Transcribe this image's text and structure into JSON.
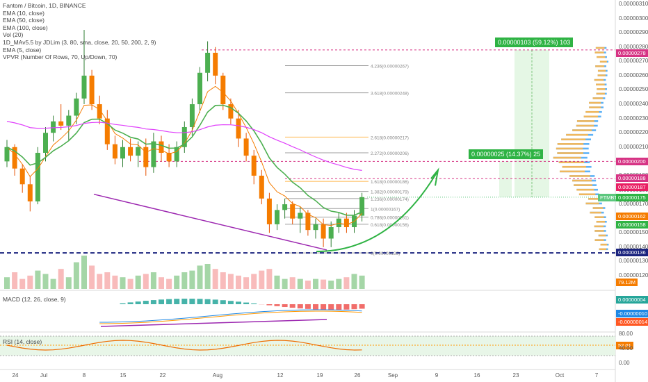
{
  "chart_data": {
    "type": "candlestick",
    "symbol": "Fantom / Bitcoin, 1D, BINANCE",
    "legend": [
      "Fantom / Bitcoin, 1D, BINANCE",
      "EMA (10, close)",
      "EMA (50, close)",
      "EMA (100, close)",
      "Vol (20)",
      "1D_MAv5.5 by JDLim (3, 80, sma, close, 20, 50, 200, 2, 9)",
      "EMA (5, close)",
      "VPVR (Number Of Rows, 70, Up/Down, 70)"
    ],
    "price_axis_ticks": [
      "0.00000310",
      "0.00000300",
      "0.00000290",
      "0.00000280",
      "0.00000270",
      "0.00000260",
      "0.00000250",
      "0.00000240",
      "0.00000230",
      "0.00000220",
      "0.00000210",
      "0.00000200",
      "0.00000190",
      "0.00000180",
      "0.00000170",
      "0.00000160",
      "0.00000150",
      "0.00000140",
      "0.00000130",
      "0.00000120"
    ],
    "x_axis_labels": [
      "24",
      "Jul",
      "8",
      "15",
      "22",
      "Aug",
      "12",
      "19",
      "26",
      "Sep",
      "9",
      "16",
      "23",
      "Oct",
      "7"
    ],
    "price_labels": [
      {
        "text": "0.00000278",
        "color": "#d63384"
      },
      {
        "text": "0.00000200",
        "color": "#d63384"
      },
      {
        "text": "0.00000188",
        "color": "#d63384"
      },
      {
        "text": "0.00000187",
        "color": "#e91e63"
      },
      {
        "text": "FTMBTC",
        "color": "#5cc77e"
      },
      {
        "text": "0.00000175",
        "color": "#2fb344"
      },
      {
        "text": "0.00000162",
        "color": "#f57c00"
      },
      {
        "text": "0.00000158",
        "color": "#2fb344"
      },
      {
        "text": "0.00000136",
        "color": "#1a237e"
      },
      {
        "text": "79.12M",
        "color": "#f57c00"
      }
    ],
    "fib_levels": [
      {
        "label": "4.236(0.00000267)",
        "price": 267
      },
      {
        "label": "3.618(0.00000248)",
        "price": 248
      },
      {
        "label": "2.618(0.00000217)",
        "price": 217
      },
      {
        "label": "2.272(0.00000206)",
        "price": 206
      },
      {
        "label": "1.618(0.00000186)",
        "price": 186
      },
      {
        "label": "1.382(0.00000179)",
        "price": 179
      },
      {
        "label": "1.236(0.00000174)",
        "price": 174
      },
      {
        "label": "1(0.00000167)",
        "price": 167
      },
      {
        "label": "0.786(0.00000161)",
        "price": 161
      },
      {
        "label": "0.618(0.00000156)",
        "price": 156
      },
      {
        "label": "0(0.00000136)",
        "price": 136
      }
    ],
    "targets": [
      {
        "text": "0.00000103 (59.12%) 103"
      },
      {
        "text": "0.00000025 (14.37%) 25"
      }
    ],
    "candles": [
      [
        200,
        215,
        196,
        210
      ],
      [
        210,
        212,
        190,
        195
      ],
      [
        195,
        198,
        178,
        184
      ],
      [
        184,
        190,
        165,
        172
      ],
      [
        172,
        210,
        170,
        206
      ],
      [
        206,
        224,
        200,
        220
      ],
      [
        220,
        232,
        214,
        228
      ],
      [
        228,
        240,
        222,
        225
      ],
      [
        225,
        236,
        215,
        232
      ],
      [
        232,
        248,
        226,
        244
      ],
      [
        244,
        292,
        240,
        260
      ],
      [
        260,
        264,
        236,
        240
      ],
      [
        240,
        246,
        226,
        230
      ],
      [
        230,
        236,
        208,
        212
      ],
      [
        212,
        218,
        198,
        202
      ],
      [
        202,
        215,
        196,
        210
      ],
      [
        210,
        216,
        200,
        204
      ],
      [
        204,
        214,
        196,
        210
      ],
      [
        210,
        216,
        190,
        196
      ],
      [
        196,
        220,
        192,
        214
      ],
      [
        214,
        218,
        200,
        206
      ],
      [
        206,
        212,
        196,
        200
      ],
      [
        200,
        214,
        196,
        210
      ],
      [
        210,
        228,
        206,
        224
      ],
      [
        224,
        244,
        218,
        240
      ],
      [
        240,
        266,
        234,
        262
      ],
      [
        262,
        284,
        256,
        276
      ],
      [
        276,
        280,
        254,
        260
      ],
      [
        260,
        262,
        236,
        240
      ],
      [
        240,
        244,
        226,
        230
      ],
      [
        230,
        236,
        210,
        216
      ],
      [
        216,
        220,
        200,
        204
      ],
      [
        204,
        208,
        184,
        190
      ],
      [
        190,
        194,
        170,
        174
      ],
      [
        174,
        178,
        150,
        156
      ],
      [
        156,
        170,
        152,
        166
      ],
      [
        166,
        174,
        160,
        170
      ],
      [
        170,
        172,
        156,
        160
      ],
      [
        160,
        168,
        150,
        164
      ],
      [
        164,
        166,
        148,
        152
      ],
      [
        152,
        160,
        146,
        156
      ],
      [
        156,
        160,
        140,
        146
      ],
      [
        146,
        158,
        140,
        154
      ],
      [
        154,
        164,
        150,
        160
      ],
      [
        160,
        164,
        150,
        154
      ],
      [
        154,
        166,
        150,
        162
      ],
      [
        162,
        178,
        158,
        175
      ]
    ],
    "ema_labels": [
      "EMA 10",
      "EMA 50",
      "EMA 100",
      "EMA 5"
    ],
    "volume": [
      0.35,
      0.5,
      0.3,
      0.4,
      0.55,
      0.45,
      0.3,
      0.6,
      0.35,
      0.8,
      1.0,
      0.7,
      0.45,
      0.5,
      0.4,
      0.35,
      0.3,
      0.4,
      0.45,
      0.5,
      0.35,
      0.3,
      0.4,
      0.5,
      0.55,
      0.7,
      0.75,
      0.6,
      0.5,
      0.45,
      0.4,
      0.35,
      0.45,
      0.55,
      0.6,
      0.4,
      0.3,
      0.35,
      0.3,
      0.25,
      0.3,
      0.28,
      0.25,
      0.3,
      0.35,
      0.45,
      0.4
    ],
    "macd_label": "MACD (12, 26, close, 9)",
    "macd_values": [
      "0.00000004",
      "-0.00000010",
      "-0.00000014"
    ],
    "rsi_label": "RSI (14, close)",
    "rsi_value": "52.01",
    "rsi_ticks": [
      "80.00",
      "40.00",
      "0.00"
    ]
  }
}
